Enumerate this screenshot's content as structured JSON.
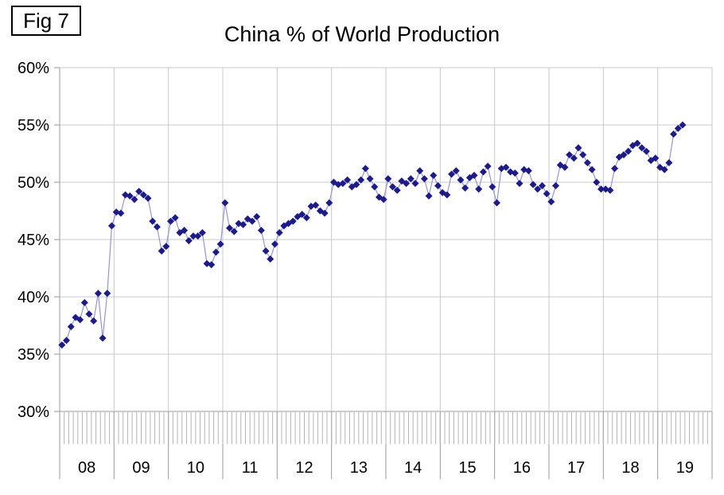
{
  "fig_label": "Fig 7",
  "chart_data": {
    "type": "line",
    "title": "China % of World Production",
    "x_unit": "month",
    "legend": "none",
    "grid": "on",
    "ylim": [
      30,
      60
    ],
    "y_axis": {
      "tick_values": [
        60,
        55,
        50,
        45,
        40,
        35,
        30
      ],
      "tick_labels": [
        "60%",
        "55%",
        "50%",
        "45%",
        "40%",
        "35%",
        "30%"
      ]
    },
    "x_axis": {
      "year_labels": [
        "08",
        "09",
        "10",
        "11",
        "12",
        "13",
        "14",
        "15",
        "16",
        "17",
        "18",
        "19"
      ]
    },
    "series": [
      {
        "name": "China % of World Production",
        "values_by_year": {
          "08": [
            35.8,
            36.2,
            37.4,
            38.2,
            38.0,
            39.5,
            38.5,
            37.9,
            40.3,
            36.4,
            40.3,
            46.2
          ],
          "09": [
            47.4,
            47.3,
            48.9,
            48.8,
            48.5,
            49.2,
            48.9,
            48.6,
            46.6,
            46.1,
            44.0,
            44.4
          ],
          "10": [
            46.6,
            46.9,
            45.6,
            45.8,
            44.9,
            45.3,
            45.3,
            45.6,
            42.9,
            42.8,
            43.9,
            44.6
          ],
          "11": [
            48.2,
            46.0,
            45.7,
            46.4,
            46.3,
            46.8,
            46.6,
            47.0,
            45.8,
            44.0,
            43.3,
            44.6
          ],
          "12": [
            45.6,
            46.2,
            46.4,
            46.6,
            47.0,
            47.2,
            46.9,
            47.9,
            48.0,
            47.5,
            47.3,
            48.2
          ],
          "13": [
            50.0,
            49.8,
            49.9,
            50.2,
            49.6,
            49.8,
            50.2,
            51.2,
            50.3,
            49.6,
            48.7,
            48.5
          ],
          "14": [
            50.3,
            49.6,
            49.3,
            50.1,
            49.9,
            50.3,
            49.9,
            51.0,
            50.3,
            48.8,
            50.6,
            49.7
          ],
          "15": [
            49.1,
            48.9,
            50.7,
            51.0,
            50.2,
            49.5,
            50.4,
            50.6,
            49.4,
            50.9,
            51.4,
            49.6
          ],
          "16": [
            48.2,
            51.2,
            51.3,
            50.9,
            50.8,
            49.9,
            51.1,
            51.0,
            49.8,
            49.4,
            49.7,
            49.0
          ],
          "17": [
            48.3,
            49.7,
            51.5,
            51.3,
            52.4,
            52.1,
            53.0,
            52.4,
            51.7,
            51.1,
            50.0,
            49.4
          ],
          "18": [
            49.4,
            49.3,
            51.2,
            52.2,
            52.4,
            52.7,
            53.2,
            53.4,
            53.0,
            52.7,
            51.9,
            52.1
          ],
          "19": [
            51.3,
            51.1,
            51.7,
            54.2,
            54.7,
            55.0
          ]
        }
      }
    ],
    "colors": {
      "marker": "#1b1b8e",
      "line": "#9595d2",
      "gridline": "#c8c8c8",
      "axis": "#999999",
      "minor_tick": "#b4b4b4",
      "text": "#000000",
      "background": "#ffffff"
    }
  }
}
